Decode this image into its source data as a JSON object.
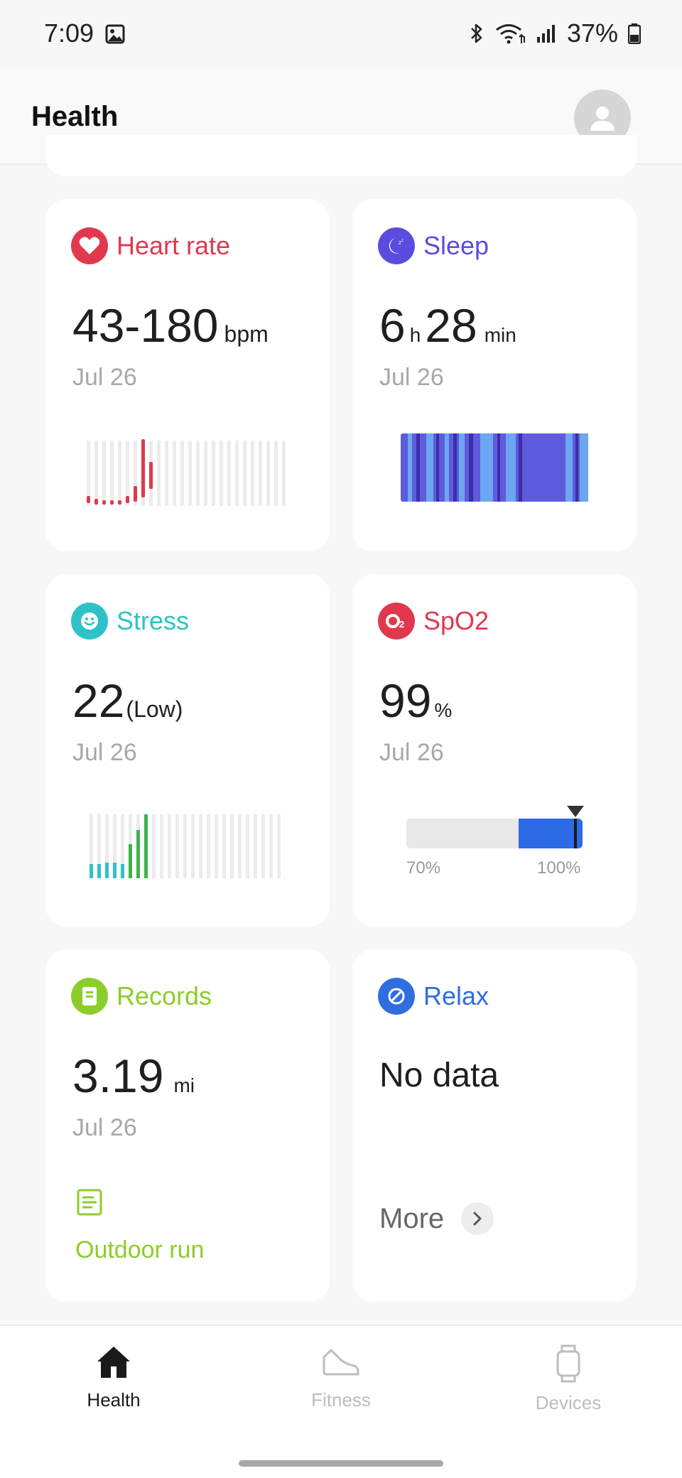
{
  "status_bar": {
    "time": "7:09",
    "battery": "37%"
  },
  "header": {
    "title": "Health"
  },
  "colors": {
    "heart": "#e0394e",
    "sleep": "#5b4ce0",
    "stress": "#2dc2c6",
    "spo2": "#e0394e",
    "records": "#8ccd2b",
    "relax": "#2f6de0"
  },
  "cards": {
    "heart_rate": {
      "title": "Heart rate",
      "value": "43-180",
      "unit": "bpm",
      "date": "Jul 26",
      "icon": "heart-icon"
    },
    "sleep": {
      "title": "Sleep",
      "hours": "6",
      "hours_unit": "h",
      "minutes": "28",
      "minutes_unit": "min",
      "date": "Jul 26",
      "icon": "moon-icon"
    },
    "stress": {
      "title": "Stress",
      "value": "22",
      "level": "(Low)",
      "date": "Jul 26",
      "icon": "smiley-icon"
    },
    "spo2": {
      "title": "SpO2",
      "value": "99",
      "unit": "%",
      "date": "Jul 26",
      "scale_min": "70%",
      "scale_max": "100%",
      "reading_percent": 99,
      "icon": "o2-icon"
    },
    "records": {
      "title": "Records",
      "value": "3.19",
      "unit": "mi",
      "date": "Jul 26",
      "activity": "Outdoor run",
      "icon": "note-icon"
    },
    "relax": {
      "title": "Relax",
      "value": "No data",
      "more": "More",
      "icon": "relax-icon"
    }
  },
  "nav": {
    "health": {
      "label": "Health",
      "icon": "home-icon"
    },
    "fitness": {
      "label": "Fitness",
      "icon": "shoe-icon"
    },
    "devices": {
      "label": "Devices",
      "icon": "watch-icon"
    }
  }
}
